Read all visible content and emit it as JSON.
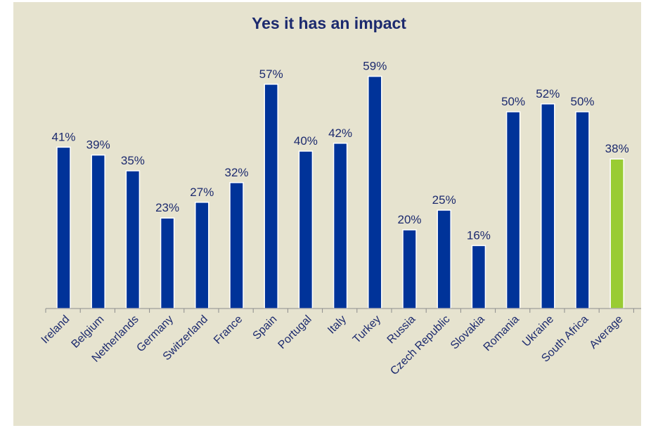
{
  "chart_data": {
    "type": "bar",
    "title": "Yes it has an impact",
    "categories": [
      "Ireland",
      "Belgium",
      "Netherlands",
      "Germany",
      "Switzerland",
      "France",
      "Spain",
      "Portugal",
      "Italy",
      "Turkey",
      "Russia",
      "Czech Republic",
      "Slovakia",
      "Romania",
      "Ukraine",
      "South Africa",
      "Average"
    ],
    "values": [
      41,
      39,
      35,
      23,
      27,
      32,
      57,
      40,
      42,
      59,
      20,
      25,
      16,
      50,
      52,
      50,
      38
    ],
    "data_labels": [
      "41%",
      "39%",
      "35%",
      "23%",
      "27%",
      "32%",
      "57%",
      "40%",
      "42%",
      "59%",
      "20%",
      "25%",
      "16%",
      "50%",
      "52%",
      "50%",
      "38%"
    ],
    "ylim": [
      0,
      60
    ],
    "grid": false,
    "legend": "none",
    "colors": {
      "bar": "#003399",
      "highlight_bar": "#99cc33",
      "background": "#e6e3cf",
      "text": "#1c2a6e"
    },
    "highlight_category": "Average"
  }
}
